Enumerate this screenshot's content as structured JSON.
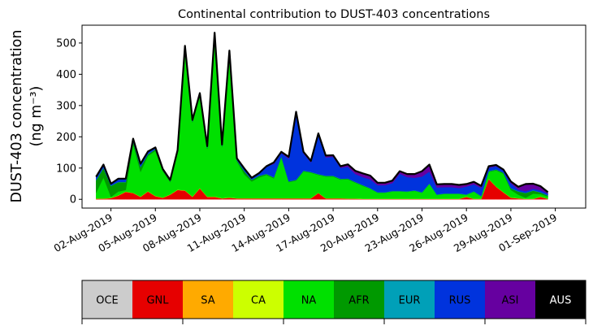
{
  "chart_data": {
    "type": "area",
    "stacked": true,
    "title": "Continental contribution to DUST-403 concentrations",
    "ylabel_line1": "DUST-403 concentration",
    "ylabel_line2": "(ng m⁻³)",
    "xlabel": "",
    "ylim": [
      -28,
      557
    ],
    "yticks": [
      0,
      100,
      200,
      300,
      400,
      500
    ],
    "x_start": "2019-08-01T00:00",
    "x_step_hours": 12,
    "x_range_days": [
      -0.95,
      33.05
    ],
    "xticks": [
      {
        "day": 1,
        "label": "02-Aug-2019"
      },
      {
        "day": 4,
        "label": "05-Aug-2019"
      },
      {
        "day": 7,
        "label": "08-Aug-2019"
      },
      {
        "day": 10,
        "label": "11-Aug-2019"
      },
      {
        "day": 13,
        "label": "14-Aug-2019"
      },
      {
        "day": 16,
        "label": "17-Aug-2019"
      },
      {
        "day": 19,
        "label": "20-Aug-2019"
      },
      {
        "day": 22,
        "label": "23-Aug-2019"
      },
      {
        "day": 25,
        "label": "26-Aug-2019"
      },
      {
        "day": 28,
        "label": "29-Aug-2019"
      },
      {
        "day": 31,
        "label": "01-Sep-2019"
      }
    ],
    "total_line_color": "#000000",
    "series": [
      {
        "name": "GNL",
        "color": "#e60000",
        "values": [
          2,
          2,
          4,
          12,
          24,
          20,
          8,
          25,
          10,
          5,
          15,
          30,
          28,
          8,
          35,
          8,
          8,
          3,
          5,
          3,
          3,
          3,
          3,
          3,
          3,
          3,
          3,
          3,
          3,
          3,
          20,
          3,
          3,
          3,
          2,
          2,
          1,
          1,
          1,
          1,
          1,
          1,
          1,
          1,
          1,
          1,
          1,
          1,
          1,
          1,
          8,
          1,
          1,
          65,
          40,
          22,
          5,
          3,
          1,
          1,
          8,
          1
        ]
      },
      {
        "name": "CA",
        "color": "#ccff00",
        "values": [
          1,
          1,
          1,
          1,
          1,
          1,
          1,
          1,
          1,
          1,
          1,
          1,
          1,
          1,
          1,
          1,
          1,
          1,
          1,
          1,
          1,
          1,
          1,
          1,
          1,
          1,
          1,
          1,
          1,
          1,
          1,
          1,
          1,
          1,
          1,
          1,
          1,
          1,
          1,
          1,
          1,
          1,
          1,
          1,
          1,
          1,
          1,
          1,
          1,
          1,
          1,
          1,
          1,
          1,
          1,
          1,
          1,
          1,
          1,
          1,
          1,
          1
        ]
      },
      {
        "name": "NA",
        "color": "#00e000",
        "values": [
          18,
          67,
          3,
          12,
          5,
          156,
          79,
          113,
          144,
          84,
          39,
          119,
          453,
          237,
          295,
          153,
          515,
          163,
          461,
          118,
          76,
          53,
          66,
          74,
          63,
          131,
          51,
          56,
          85,
          81,
          57,
          69,
          69,
          59,
          61,
          50,
          41,
          32,
          19,
          19,
          23,
          23,
          22,
          25,
          19,
          47,
          12,
          15,
          15,
          15,
          5,
          22,
          7,
          22,
          52,
          59,
          24,
          11,
          3,
          16,
          8,
          7
        ]
      },
      {
        "name": "AFR",
        "color": "#009900",
        "values": [
          40,
          30,
          35,
          30,
          25,
          8,
          15,
          5,
          5,
          3,
          3,
          3,
          3,
          3,
          3,
          3,
          3,
          3,
          3,
          3,
          10,
          5,
          5,
          3,
          3,
          2,
          2,
          2,
          2,
          2,
          2,
          2,
          2,
          2,
          2,
          2,
          2,
          1,
          1,
          1,
          1,
          1,
          1,
          1,
          1,
          1,
          1,
          1,
          1,
          1,
          1,
          1,
          1,
          2,
          2,
          3,
          5,
          10,
          15,
          10,
          5,
          3
        ]
      },
      {
        "name": "EUR",
        "color": "#00a0b8",
        "values": [
          1,
          1,
          1,
          1,
          1,
          1,
          1,
          1,
          1,
          1,
          1,
          1,
          1,
          1,
          1,
          1,
          1,
          1,
          1,
          1,
          1,
          1,
          1,
          1,
          1,
          1,
          1,
          1,
          1,
          1,
          1,
          1,
          1,
          1,
          1,
          1,
          1,
          1,
          1,
          1,
          1,
          1,
          1,
          1,
          1,
          1,
          1,
          1,
          1,
          1,
          1,
          1,
          1,
          1,
          1,
          1,
          1,
          1,
          1,
          1,
          1,
          1
        ]
      },
      {
        "name": "RUS",
        "color": "#0033dd",
        "values": [
          10,
          10,
          6,
          10,
          10,
          8,
          10,
          8,
          5,
          3,
          3,
          3,
          5,
          4,
          5,
          4,
          5,
          4,
          5,
          5,
          8,
          6,
          8,
          24,
          42,
          10,
          72,
          210,
          55,
          30,
          125,
          58,
          60,
          35,
          37,
          25,
          25,
          28,
          22,
          22,
          25,
          55,
          45,
          40,
          50,
          38,
          22,
          20,
          20,
          17,
          25,
          22,
          25,
          10,
          10,
          6,
          15,
          5,
          5,
          5,
          6,
          5
        ]
      },
      {
        "name": "ASI",
        "color": "#6600a0",
        "values": [
          0,
          0,
          0,
          0,
          0,
          0,
          0,
          0,
          0,
          0,
          0,
          0,
          0,
          0,
          0,
          0,
          0,
          0,
          0,
          0,
          0,
          0,
          0,
          0,
          5,
          4,
          6,
          7,
          5,
          5,
          5,
          6,
          5,
          5,
          8,
          10,
          12,
          12,
          8,
          8,
          8,
          8,
          10,
          12,
          17,
          22,
          10,
          10,
          10,
          10,
          8,
          8,
          7,
          5,
          4,
          3,
          6,
          9,
          23,
          16,
          13,
          5
        ]
      }
    ],
    "legend": {
      "placement": "bottom colorbar",
      "items": [
        {
          "label": "OCE",
          "color": "#cccccc",
          "text_color": "#000000"
        },
        {
          "label": "GNL",
          "color": "#e60000",
          "text_color": "#000000"
        },
        {
          "label": "SA",
          "color": "#ffaa00",
          "text_color": "#000000"
        },
        {
          "label": "CA",
          "color": "#ccff00",
          "text_color": "#000000"
        },
        {
          "label": "NA",
          "color": "#00e000",
          "text_color": "#000000"
        },
        {
          "label": "AFR",
          "color": "#009900",
          "text_color": "#000000"
        },
        {
          "label": "EUR",
          "color": "#00a0b8",
          "text_color": "#000000"
        },
        {
          "label": "RUS",
          "color": "#0033dd",
          "text_color": "#000000"
        },
        {
          "label": "ASI",
          "color": "#6600a0",
          "text_color": "#000000"
        },
        {
          "label": "AUS",
          "color": "#000000",
          "text_color": "#ffffff"
        }
      ]
    }
  }
}
